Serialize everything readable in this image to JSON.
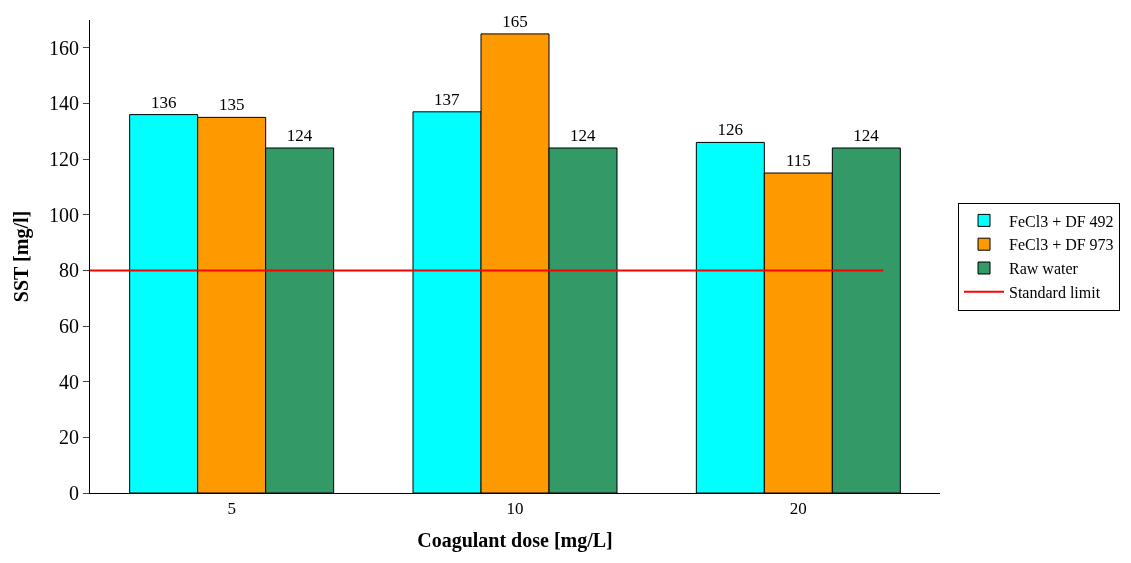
{
  "chart_data": {
    "type": "bar",
    "xlabel": "Coagulant dose [mg/L]",
    "ylabel": "SST [mg/l]",
    "categories": [
      "5",
      "10",
      "20"
    ],
    "series": [
      {
        "name": "FeCl3 + DF 492",
        "color": "#00ffff",
        "values": [
          136,
          137,
          126
        ]
      },
      {
        "name": "FeCl3 + DF 973",
        "color": "#ff9900",
        "values": [
          135,
          165,
          115
        ]
      },
      {
        "name": "Raw water",
        "color": "#339966",
        "values": [
          124,
          124,
          124
        ]
      }
    ],
    "ref_lines": [
      {
        "axis": "y",
        "value": 80,
        "label": "Standard limit",
        "color": "#ff0000",
        "line_style": "solid"
      }
    ],
    "ylim": [
      0,
      170
    ],
    "yticks": [
      0,
      20,
      40,
      60,
      80,
      100,
      120,
      140,
      160
    ],
    "data_labels": true,
    "legend": "right"
  }
}
